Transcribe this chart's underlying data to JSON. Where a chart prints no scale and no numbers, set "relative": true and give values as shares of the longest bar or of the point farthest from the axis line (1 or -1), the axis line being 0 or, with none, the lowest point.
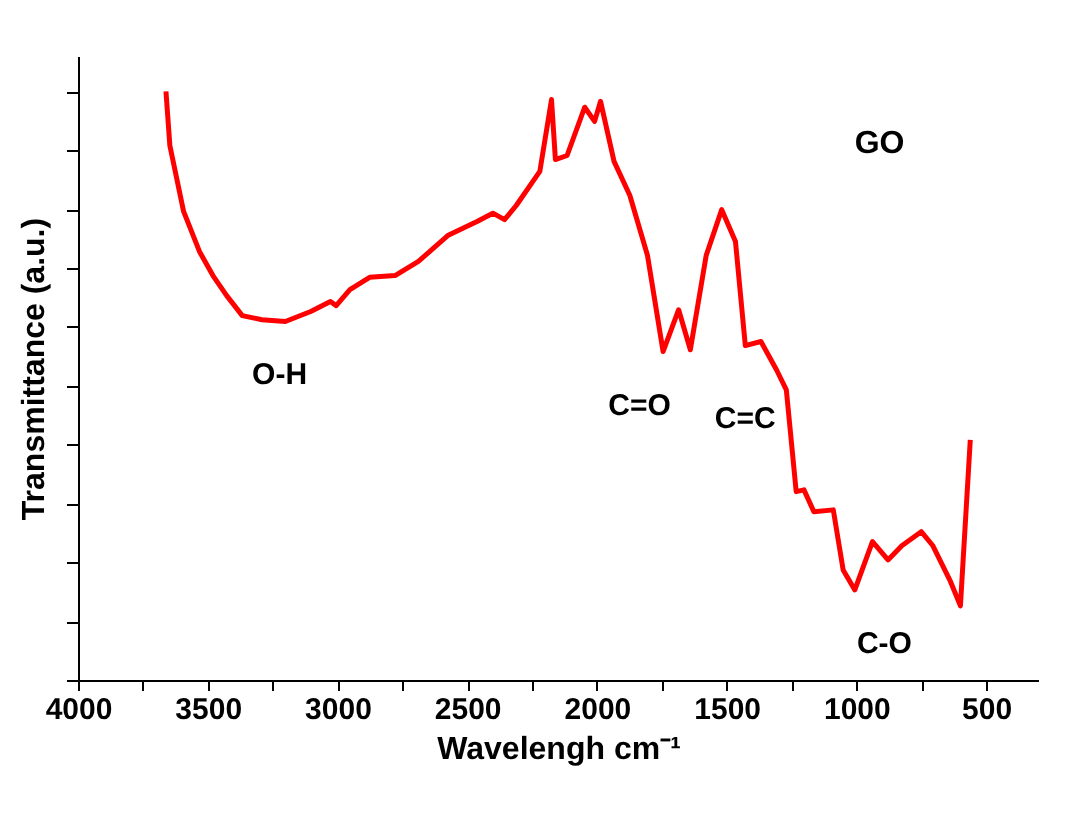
{
  "chart_data": {
    "type": "line",
    "relative": true,
    "xlabel": "Wavelengh cm⁻¹",
    "ylabel": "Transmittance (a.u.)",
    "xlim": [
      4000,
      300
    ],
    "xticks": [
      4000,
      {
        "value": 3750,
        "label": null
      },
      3500,
      {
        "value": 3250,
        "label": null
      },
      3000,
      {
        "value": 2750,
        "label": null
      },
      2500,
      {
        "value": 2250,
        "label": null
      },
      2000,
      {
        "value": 1750,
        "label": null
      },
      1500,
      {
        "value": 1250,
        "label": null
      },
      1000,
      {
        "value": 750,
        "label": null
      },
      500
    ],
    "tick_labels": "x",
    "grid": false,
    "marker": "none",
    "line_style": "solid",
    "series": [
      {
        "color": "#ff0000",
        "x": [
          3661,
          3646,
          3593,
          3532,
          3480,
          3427,
          3367,
          3291,
          3201,
          3103,
          3027,
          3005,
          2952,
          2876,
          2778,
          2688,
          2575,
          2462,
          2401,
          2356,
          2311,
          2220,
          2175,
          2160,
          2115,
          2047,
          2009,
          1986,
          1934,
          1873,
          1805,
          1745,
          1685,
          1640,
          1579,
          1519,
          1466,
          1428,
          1368,
          1308,
          1270,
          1232,
          1202,
          1164,
          1089,
          1051,
          1006,
          938,
          878,
          825,
          750,
          705,
          637,
          599,
          561
        ],
        "values": [
          1.0,
          0.908,
          0.796,
          0.728,
          0.687,
          0.653,
          0.619,
          0.612,
          0.609,
          0.626,
          0.643,
          0.636,
          0.663,
          0.684,
          0.687,
          0.711,
          0.755,
          0.779,
          0.793,
          0.782,
          0.806,
          0.864,
          0.986,
          0.884,
          0.891,
          0.973,
          0.949,
          0.983,
          0.881,
          0.823,
          0.721,
          0.558,
          0.629,
          0.561,
          0.721,
          0.799,
          0.745,
          0.568,
          0.575,
          0.527,
          0.493,
          0.32,
          0.323,
          0.286,
          0.289,
          0.187,
          0.153,
          0.235,
          0.204,
          0.228,
          0.252,
          0.228,
          0.167,
          0.126,
          0.408
        ]
      }
    ],
    "annotations": [
      "GO",
      "O-H",
      "C=O",
      "C=C",
      "C-O"
    ]
  }
}
